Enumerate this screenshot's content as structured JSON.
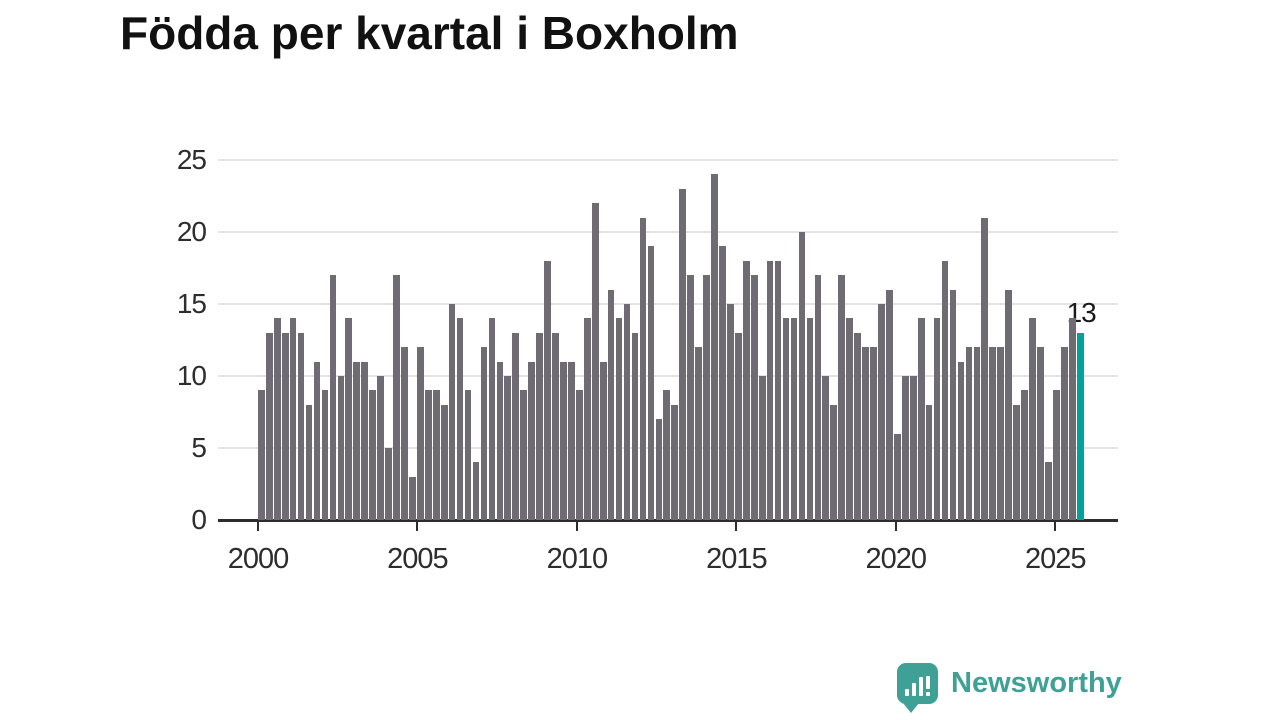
{
  "title": "Födda per kvartal i Boxholm",
  "chart_data": {
    "type": "bar",
    "frequency": "quarterly",
    "start_period": "2000 Q1",
    "values": [
      9,
      13,
      14,
      13,
      14,
      13,
      8,
      11,
      9,
      17,
      10,
      14,
      11,
      11,
      9,
      10,
      5,
      17,
      12,
      3,
      12,
      9,
      9,
      8,
      15,
      14,
      9,
      4,
      12,
      14,
      11,
      10,
      13,
      9,
      11,
      13,
      18,
      13,
      11,
      11,
      9,
      14,
      22,
      11,
      16,
      14,
      15,
      13,
      21,
      19,
      7,
      9,
      8,
      23,
      17,
      12,
      17,
      24,
      19,
      15,
      13,
      18,
      17,
      10,
      18,
      18,
      14,
      14,
      20,
      14,
      17,
      10,
      8,
      17,
      14,
      13,
      12,
      12,
      15,
      16,
      6,
      10,
      10,
      14,
      8,
      14,
      18,
      16,
      11,
      12,
      12,
      21,
      12,
      12,
      16,
      8,
      9,
      14,
      12,
      4,
      9,
      12,
      14,
      13
    ],
    "highlight": {
      "index": 103,
      "value": 13,
      "label": "13"
    },
    "x_tick_labels": [
      "2000",
      "2005",
      "2010",
      "2015",
      "2020",
      "2025"
    ],
    "y_tick_labels": [
      "25",
      "20",
      "15",
      "10",
      "5",
      "0"
    ],
    "ylim": [
      0,
      25
    ],
    "grid": "horizontal-only",
    "legend": "none"
  },
  "colors": {
    "bar": "#6f6b72",
    "highlight_bar": "#00a29c",
    "grid": "#e3e3e3",
    "axis": "#2d2d2d",
    "title": "#111111",
    "logo": "#3fa096"
  },
  "logo": {
    "text": "Newsworthy"
  }
}
